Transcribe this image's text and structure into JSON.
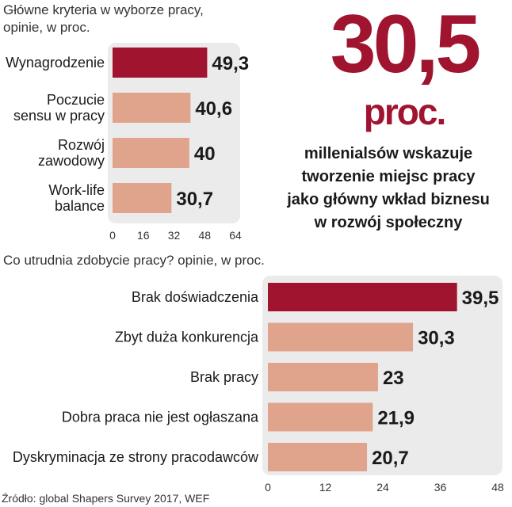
{
  "chart_data": [
    {
      "type": "bar",
      "orientation": "horizontal",
      "title_lines": [
        "Główne kryteria w wyborze pracy,",
        "opinie, w proc."
      ],
      "categories": [
        [
          "Wynagrodzenie"
        ],
        [
          "Poczucie",
          "sensu w pracy"
        ],
        [
          "Rozwój",
          "zawodowy"
        ],
        [
          "Work-life",
          "balance"
        ]
      ],
      "values": [
        49.3,
        40.6,
        40,
        30.7
      ],
      "value_labels": [
        "49,3",
        "40,6",
        "40",
        "30,7"
      ],
      "highlight_index": 0,
      "xlim": [
        0,
        64
      ],
      "ticks": [
        0,
        16,
        32,
        48,
        64
      ]
    },
    {
      "type": "bar",
      "orientation": "horizontal",
      "title": "Co utrudnia zdobycie pracy? opinie, w proc.",
      "categories": [
        "Brak doświadczenia",
        "Zbyt duża konkurencja",
        "Brak pracy",
        "Dobra praca nie jest ogłaszana",
        "Dyskryminacja ze strony pracodawców"
      ],
      "values": [
        39.5,
        30.3,
        23,
        21.9,
        20.7
      ],
      "value_labels": [
        "39,5",
        "30,3",
        "23",
        "21,9",
        "20,7"
      ],
      "highlight_index": 0,
      "xlim": [
        0,
        48
      ],
      "ticks": [
        0,
        12,
        24,
        36,
        48
      ]
    }
  ],
  "stat": {
    "number": "30,5",
    "unit": "proc.",
    "text_lines": [
      "millenialsów wskazuje",
      "tworzenie miejsc pracy",
      "jako główny wkład biznesu",
      "w rozwój społeczny"
    ]
  },
  "source": "Źródło: global Shapers Survey 2017, WEF",
  "colors": {
    "highlight": "#a01430",
    "bar": "#e0a48c",
    "panel": "#ebebeb",
    "text": "#1a1a1a"
  }
}
